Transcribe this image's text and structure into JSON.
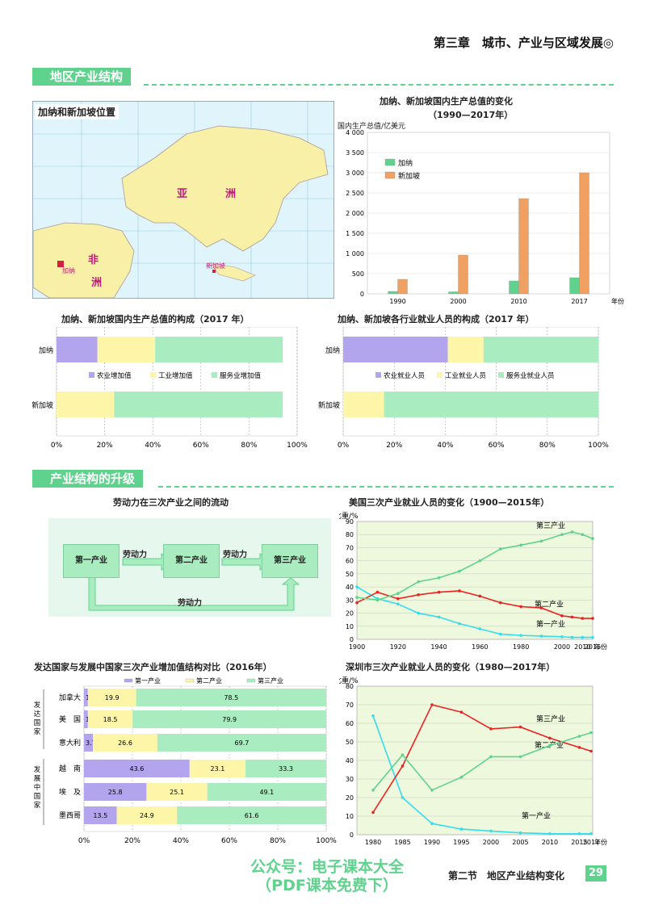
{
  "header": {
    "chapter": "第三章　城市、产业与区域发展◎"
  },
  "sections": {
    "s1": "地区产业结构",
    "s2": "产业结构的升级"
  },
  "map": {
    "title": "加纳和新加坡位置",
    "labels": {
      "asia1": "亚",
      "asia2": "洲",
      "africa1": "非",
      "africa2": "洲",
      "ghana": "加纳",
      "singapore": "新加坡"
    }
  },
  "gdp_chart": {
    "title": "加纳、新加坡国内生产总值的变化",
    "subtitle": "（1990—2017年）",
    "ylabel": "国内生产总值/亿美元",
    "xlabel": "年份",
    "legend": [
      "加纳",
      "新加坡"
    ],
    "chart_data": {
      "type": "bar",
      "categories": [
        "1990",
        "2000",
        "2010",
        "2017"
      ],
      "series": [
        {
          "name": "加纳",
          "values": [
            60,
            50,
            320,
            400
          ]
        },
        {
          "name": "新加坡",
          "values": [
            360,
            960,
            2360,
            3000
          ]
        }
      ],
      "ylim": [
        0,
        4000
      ],
      "yticks": [
        "0",
        "500",
        "1 000",
        "1 500",
        "2 000",
        "2 500",
        "3 000",
        "3 500",
        "4 000"
      ]
    }
  },
  "gdp_comp": {
    "title": "加纳、新加坡国内生产总值的构成（2017 年）",
    "legend": [
      "农业增加值",
      "工业增加值",
      "服务业增加值"
    ],
    "chart_data": {
      "type": "bar",
      "categories": [
        "加纳",
        "新加坡"
      ],
      "series": [
        {
          "name": "农业增加值",
          "values": [
            17,
            0
          ]
        },
        {
          "name": "工业增加值",
          "values": [
            24,
            24
          ]
        },
        {
          "name": "服务业增加值",
          "values": [
            53,
            70
          ]
        }
      ],
      "xticks": [
        "0%",
        "20%",
        "40%",
        "60%",
        "80%",
        "100%"
      ]
    }
  },
  "emp_comp": {
    "title": "加纳、新加坡各行业就业人员的构成（2017 年）",
    "legend": [
      "农业就业人员",
      "工业就业人员",
      "服务业就业人员"
    ],
    "chart_data": {
      "type": "bar",
      "categories": [
        "加纳",
        "新加坡"
      ],
      "series": [
        {
          "name": "农业就业人员",
          "values": [
            41,
            0
          ]
        },
        {
          "name": "工业就业人员",
          "values": [
            14,
            16
          ]
        },
        {
          "name": "服务业就业人员",
          "values": [
            45,
            84
          ]
        }
      ],
      "xticks": [
        "0%",
        "20%",
        "40%",
        "60%",
        "80%",
        "100%"
      ]
    }
  },
  "flow": {
    "title": "劳动力在三次产业之间的流动",
    "box1": "第一产业",
    "box2": "第二产业",
    "box3": "第三产业",
    "arrow": "劳动力"
  },
  "us_chart": {
    "title": "美国三次产业就业人员的变化（1900—2015年）",
    "ylabel": "比重/%",
    "xlabel": "年份",
    "chart_data": {
      "type": "line",
      "x": [
        1900,
        1910,
        1920,
        1930,
        1940,
        1950,
        1960,
        1970,
        1980,
        1990,
        2000,
        2005,
        2010,
        2015
      ],
      "series": [
        {
          "name": "第一产业",
          "values": [
            40,
            31,
            27,
            20,
            17,
            12,
            8,
            4,
            3,
            2.5,
            2,
            1.5,
            1.5,
            1.5
          ]
        },
        {
          "name": "第二产业",
          "values": [
            28,
            36,
            31,
            34,
            36,
            37,
            33,
            28,
            25,
            24,
            18,
            17,
            16,
            16
          ]
        },
        {
          "name": "第三产业",
          "values": [
            32,
            30,
            35,
            44,
            47,
            52,
            60,
            69,
            72,
            75,
            80,
            82,
            80,
            77
          ]
        }
      ],
      "ylim": [
        0,
        90
      ],
      "xticks": [
        "1900",
        "1920",
        "1940",
        "1960",
        "1980",
        "2000",
        "2010",
        "2015"
      ],
      "yticks": [
        "0",
        "10",
        "20",
        "30",
        "40",
        "50",
        "60",
        "70",
        "80",
        "90"
      ]
    }
  },
  "dev_chart": {
    "title": "发达国家与发展中国家三次产业增加值结构对比（2016年）",
    "legend": [
      "第一产业",
      "第二产业",
      "第三产业"
    ],
    "group1": "发达国家",
    "group2": "发展中国家",
    "chart_data": {
      "type": "bar",
      "categories": [
        "加拿大",
        "美　国",
        "意大利",
        "越　南",
        "埃　及",
        "墨西哥"
      ],
      "series": [
        {
          "name": "第一产业",
          "values": [
            1.6,
            1.6,
            3.7,
            43.6,
            25.8,
            13.5
          ]
        },
        {
          "name": "第二产业",
          "values": [
            19.9,
            18.5,
            26.6,
            23.1,
            25.1,
            24.9
          ]
        },
        {
          "name": "第三产业",
          "values": [
            78.5,
            79.9,
            69.7,
            33.3,
            49.1,
            61.6
          ]
        }
      ],
      "labels": [
        [
          "1.6",
          "19.9",
          "78.5"
        ],
        [
          "1.6",
          "18.5",
          "79.9"
        ],
        [
          "3.7",
          "26.6",
          "69.7"
        ],
        [
          "43.6",
          "23.1",
          "33.3"
        ],
        [
          "25.8",
          "25.1",
          "49.1"
        ],
        [
          "13.5",
          "24.9",
          "61.6"
        ]
      ],
      "xticks": [
        "0%",
        "20%",
        "40%",
        "60%",
        "80%",
        "100%"
      ]
    }
  },
  "sz_chart": {
    "title": "深圳市三次产业就业人员的变化（1980—2017年）",
    "ylabel": "比重/%",
    "xlabel": "年份",
    "chart_data": {
      "type": "line",
      "x": [
        "1980",
        "1985",
        "1990",
        "1995",
        "2000",
        "2005",
        "2010",
        "2015",
        "2017"
      ],
      "series": [
        {
          "name": "第一产业",
          "values": [
            64,
            20,
            6,
            3,
            2,
            1,
            0.5,
            0.5,
            0.5
          ]
        },
        {
          "name": "第二产业",
          "values": [
            12,
            37,
            70,
            66,
            57,
            58,
            52,
            47,
            45
          ]
        },
        {
          "name": "第三产业",
          "values": [
            24,
            43,
            24,
            31,
            42,
            42,
            48,
            53,
            55
          ]
        }
      ],
      "ylim": [
        0,
        80
      ],
      "yticks": [
        "0",
        "10",
        "20",
        "30",
        "40",
        "50",
        "60",
        "70",
        "80"
      ]
    }
  },
  "footer": {
    "text": "第二节　地区产业结构变化",
    "page": "29"
  },
  "watermark": {
    "line1": "公众号：电子课本大全",
    "line2": "（PDF课本免费下）"
  },
  "colors": {
    "green": "#5fd38d",
    "purple": "#b3a4ee",
    "yellow": "#fdf6a8",
    "lightgreen": "#a8ecbf",
    "orange": "#f0a060",
    "red": "#ee2222",
    "cyan": "#33ddee"
  }
}
